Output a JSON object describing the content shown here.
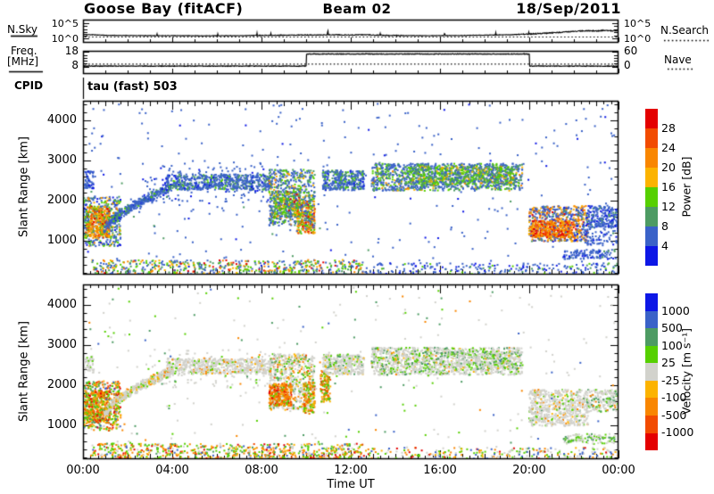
{
  "header": {
    "station": "Goose Bay (fitACF)",
    "beam": "Beam 02",
    "date": "18/Sep/2011"
  },
  "strips": {
    "nsky": {
      "label": "N.Sky",
      "right_label": "N.Search",
      "tick_top": "10^5",
      "tick_bottom": "10^0"
    },
    "freq": {
      "label_line1": "Freq.",
      "label_line2": "[MHz]",
      "tick_top": "18",
      "tick_bottom": "8",
      "right_tick_top": "60",
      "right_tick_bottom": "0",
      "right_label": "Nave"
    }
  },
  "cpid": {
    "label": "CPID",
    "value": "tau (fast) 503"
  },
  "axes": {
    "xlabel": "Time UT",
    "xticks": [
      {
        "t": 0,
        "label": "00:00"
      },
      {
        "t": 4,
        "label": "04:00"
      },
      {
        "t": 8,
        "label": "08:00"
      },
      {
        "t": 12,
        "label": "12:00"
      },
      {
        "t": 16,
        "label": "16:00"
      },
      {
        "t": 20,
        "label": "20:00"
      },
      {
        "t": 24,
        "label": "00:00"
      }
    ],
    "yticks": [
      {
        "value": 1000,
        "label": "1000"
      },
      {
        "value": 2000,
        "label": "2000"
      },
      {
        "value": 3000,
        "label": "3000"
      },
      {
        "value": 4000,
        "label": "4000"
      }
    ]
  },
  "palette": {
    "r": "#e40000",
    "R": "#f24b00",
    "O": "#f98600",
    "Y": "#fcb300",
    "g": "#56d000",
    "G": "#4d9b63",
    "b": "#3a62c8",
    "B": "#0d17e6",
    "X": "#d2d2cc"
  },
  "chart_data": [
    {
      "type": "line",
      "title": "N.Sky / N.Search",
      "x_range": [
        0,
        24
      ],
      "y_scale": "log10, 10^0 to 10^5",
      "series": [
        {
          "name": "N.Sky",
          "style": "solid",
          "points": [
            [
              0,
              1.3
            ],
            [
              0.5,
              1.15
            ],
            [
              1,
              1.0
            ],
            [
              2,
              0.95
            ],
            [
              3,
              0.9
            ],
            [
              5,
              0.85
            ],
            [
              7,
              0.88
            ],
            [
              8,
              0.98
            ],
            [
              9,
              1.05
            ],
            [
              10,
              1.1
            ],
            [
              10.5,
              1.1
            ],
            [
              11,
              1.2
            ],
            [
              11.5,
              1.15
            ],
            [
              12,
              1.1
            ],
            [
              12.5,
              1.2
            ],
            [
              13,
              1.1
            ],
            [
              13.5,
              1.0
            ],
            [
              14,
              0.95
            ],
            [
              15,
              0.9
            ],
            [
              16,
              0.9
            ],
            [
              17,
              0.95
            ],
            [
              18,
              1.05
            ],
            [
              19,
              1.15
            ],
            [
              20,
              1.4
            ],
            [
              21,
              1.8
            ],
            [
              21.5,
              2.05
            ],
            [
              22,
              2.3
            ],
            [
              22.5,
              2.5
            ],
            [
              23,
              2.45
            ],
            [
              23.4,
              2.65
            ],
            [
              23.7,
              2.5
            ],
            [
              24,
              2.6
            ]
          ]
        },
        {
          "name": "N.Search",
          "style": "dotted",
          "points": [
            [
              0,
              0.45
            ],
            [
              24,
              0.45
            ]
          ]
        }
      ]
    },
    {
      "type": "line",
      "title": "Freq [MHz] / Nave",
      "x_range": [
        0,
        24
      ],
      "y_range": [
        8,
        18
      ],
      "right_axis": {
        "label": "Nave",
        "range": [
          0,
          60
        ]
      },
      "series": [
        {
          "name": "Freq",
          "style": "solid",
          "points": [
            [
              0,
              8.35
            ],
            [
              10,
              8.35
            ],
            [
              10,
              16.7
            ],
            [
              20,
              16.7
            ],
            [
              20,
              8.35
            ],
            [
              24,
              8.35
            ]
          ]
        },
        {
          "name": "Nave",
          "style": "dotted",
          "points": [
            [
              0,
              8
            ],
            [
              24,
              8
            ]
          ]
        }
      ]
    },
    {
      "type": "scatter",
      "title": "Power",
      "ylabel": "Slant Range [km]",
      "x_range": [
        0,
        24
      ],
      "y_range": [
        150,
        4500
      ],
      "colorbar": {
        "label": "Power [dB]",
        "labels": [
          "28",
          "24",
          "20",
          "16",
          "12",
          "8",
          "4"
        ],
        "colors": [
          "#e40000",
          "#f24b00",
          "#f98600",
          "#fcb300",
          "#56d000",
          "#4d9b63",
          "#3a62c8",
          "#0d17e6"
        ]
      },
      "seed": 1234,
      "regions": [
        {
          "t0": 0.0,
          "t1": 1.65,
          "r0": 880,
          "r1": 2120,
          "n": 420,
          "c": {
            "b": 40,
            "B": 8,
            "g": 20,
            "G": 16,
            "Y": 8,
            "O": 8
          }
        },
        {
          "t0": 0.08,
          "t1": 1.15,
          "r0": 1080,
          "r1": 1880,
          "n": 330,
          "c": {
            "O": 34,
            "Y": 22,
            "g": 20,
            "R": 12,
            "r": 5,
            "G": 7
          }
        },
        {
          "t0": 0.9,
          "t1": 3.9,
          "r0": 1250,
          "r1": 2350,
          "n": 420,
          "curve": true,
          "spread": 280,
          "c": {
            "b": 70,
            "B": 8,
            "G": 14,
            "g": 8
          }
        },
        {
          "t0": 3.7,
          "t1": 8.4,
          "r0": 2290,
          "r1": 2680,
          "n": 620,
          "c": {
            "b": 72,
            "B": 6,
            "G": 14,
            "g": 8
          }
        },
        {
          "t0": 2.8,
          "t1": 8.4,
          "r0": 1950,
          "r1": 2900,
          "n": 140,
          "c": {
            "b": 88,
            "B": 12
          }
        },
        {
          "t0": 8.3,
          "t1": 10.35,
          "r0": 1400,
          "r1": 2800,
          "n": 650,
          "c": {
            "b": 50,
            "G": 20,
            "g": 18,
            "Y": 6,
            "O": 6
          }
        },
        {
          "t0": 8.5,
          "t1": 9.7,
          "r0": 1600,
          "r1": 2250,
          "n": 230,
          "c": {
            "g": 32,
            "G": 26,
            "b": 18,
            "Y": 12,
            "O": 8,
            "r": 4
          }
        },
        {
          "t0": 9.55,
          "t1": 10.35,
          "r0": 1200,
          "r1": 2000,
          "n": 200,
          "c": {
            "O": 26,
            "g": 22,
            "Y": 14,
            "b": 18,
            "R": 12,
            "r": 8
          }
        },
        {
          "t0": 10.7,
          "t1": 12.55,
          "r0": 2280,
          "r1": 2780,
          "n": 360,
          "c": {
            "b": 66,
            "G": 16,
            "g": 12,
            "B": 6
          }
        },
        {
          "t0": 12.9,
          "t1": 19.65,
          "r0": 2270,
          "r1": 2950,
          "n": 1250,
          "c": {
            "b": 52,
            "G": 22,
            "g": 16,
            "Y": 5,
            "O": 5
          }
        },
        {
          "t0": 14.4,
          "t1": 19.2,
          "r0": 2430,
          "r1": 2870,
          "n": 420,
          "c": {
            "G": 36,
            "g": 36,
            "Y": 12,
            "b": 16
          }
        },
        {
          "t0": 19.95,
          "t1": 22.6,
          "r0": 1000,
          "r1": 1900,
          "n": 650,
          "c": {
            "b": 42,
            "B": 8,
            "O": 16,
            "Y": 14,
            "R": 9,
            "r": 4,
            "G": 7
          }
        },
        {
          "t0": 20.0,
          "t1": 21.95,
          "r0": 1100,
          "r1": 1520,
          "n": 330,
          "c": {
            "O": 40,
            "R": 22,
            "Y": 22,
            "r": 16
          }
        },
        {
          "t0": 22.55,
          "t1": 23.95,
          "r0": 1350,
          "r1": 1900,
          "n": 230,
          "c": {
            "b": 80,
            "B": 14,
            "G": 6
          }
        },
        {
          "t0": 22.4,
          "t1": 24,
          "r0": 900,
          "r1": 1400,
          "n": 90,
          "c": {
            "b": 85,
            "B": 15
          }
        },
        {
          "t0": 0,
          "t1": 24,
          "r0": 350,
          "r1": 4450,
          "n": 330,
          "c": {
            "b": 84,
            "B": 10,
            "G": 6
          }
        },
        {
          "t0": 0.3,
          "t1": 12.5,
          "r0": 165,
          "r1": 540,
          "n": 560,
          "c": {
            "b": 30,
            "G": 16,
            "g": 22,
            "O": 13,
            "Y": 12,
            "r": 7
          }
        },
        {
          "t0": 12.5,
          "t1": 24,
          "r0": 165,
          "r1": 460,
          "n": 240,
          "c": {
            "b": 64,
            "B": 16,
            "G": 10,
            "g": 10
          }
        },
        {
          "t0": 21.5,
          "t1": 23.8,
          "r0": 560,
          "r1": 800,
          "n": 120,
          "c": {
            "b": 78,
            "B": 16,
            "G": 6
          }
        },
        {
          "t0": 0,
          "t1": 0.45,
          "r0": 2330,
          "r1": 2760,
          "n": 60,
          "c": {
            "b": 85,
            "B": 15
          }
        }
      ]
    },
    {
      "type": "scatter",
      "title": "Velocity",
      "ylabel": "Slant Range [km]",
      "xlabel": "Time UT",
      "x_range": [
        0,
        24
      ],
      "y_range": [
        150,
        4500
      ],
      "colorbar": {
        "label": "Velocity [m s⁻¹]",
        "labels": [
          "1000",
          "500",
          "100",
          "25",
          "-25",
          "-100",
          "-500",
          "-1000"
        ],
        "colors": [
          "#0d17e6",
          "#3a62c8",
          "#4d9b63",
          "#56d000",
          "#d2d2cc",
          "#fcb300",
          "#f98600",
          "#f24b00",
          "#e40000"
        ]
      },
      "seed": 5678,
      "regions": [
        {
          "t0": 0.0,
          "t1": 1.65,
          "r0": 880,
          "r1": 2120,
          "n": 420,
          "c": {
            "g": 26,
            "O": 22,
            "G": 12,
            "Y": 12,
            "R": 9,
            "r": 6,
            "X": 9,
            "b": 4
          }
        },
        {
          "t0": 0.08,
          "t1": 1.15,
          "r0": 1080,
          "r1": 1880,
          "n": 330,
          "c": {
            "O": 34,
            "g": 22,
            "Y": 14,
            "R": 14,
            "r": 8,
            "G": 8
          }
        },
        {
          "t0": 0.9,
          "t1": 3.9,
          "r0": 1250,
          "r1": 2350,
          "n": 420,
          "curve": true,
          "spread": 280,
          "c": {
            "X": 74,
            "g": 10,
            "O": 8,
            "Y": 8
          }
        },
        {
          "t0": 3.7,
          "t1": 8.4,
          "r0": 2290,
          "r1": 2680,
          "n": 620,
          "c": {
            "X": 86,
            "g": 6,
            "Y": 4,
            "O": 4
          }
        },
        {
          "t0": 2.8,
          "t1": 8.4,
          "r0": 1950,
          "r1": 2900,
          "n": 130,
          "c": {
            "X": 78,
            "g": 12,
            "O": 10
          }
        },
        {
          "t0": 8.3,
          "t1": 10.35,
          "r0": 1400,
          "r1": 2800,
          "n": 650,
          "c": {
            "X": 52,
            "g": 16,
            "O": 12,
            "G": 8,
            "Y": 8,
            "R": 4
          }
        },
        {
          "t0": 8.3,
          "t1": 9.3,
          "r0": 1500,
          "r1": 2050,
          "n": 260,
          "c": {
            "O": 46,
            "R": 22,
            "Y": 14,
            "g": 12,
            "r": 6
          }
        },
        {
          "t0": 9.85,
          "t1": 10.35,
          "r0": 1300,
          "r1": 2100,
          "n": 140,
          "c": {
            "O": 30,
            "R": 18,
            "g": 22,
            "X": 14,
            "Y": 16
          }
        },
        {
          "t0": 10.6,
          "t1": 11.05,
          "r0": 1600,
          "r1": 2350,
          "n": 120,
          "c": {
            "O": 28,
            "R": 20,
            "g": 26,
            "G": 12,
            "Y": 14
          }
        },
        {
          "t0": 10.7,
          "t1": 12.55,
          "r0": 2280,
          "r1": 2780,
          "n": 360,
          "c": {
            "X": 76,
            "g": 10,
            "G": 8,
            "Y": 6
          }
        },
        {
          "t0": 12.9,
          "t1": 19.65,
          "r0": 2270,
          "r1": 2950,
          "n": 1250,
          "c": {
            "X": 70,
            "g": 14,
            "G": 10,
            "Y": 3,
            "O": 3
          }
        },
        {
          "t0": 14.4,
          "t1": 19.2,
          "r0": 2430,
          "r1": 2870,
          "n": 300,
          "c": {
            "X": 56,
            "g": 22,
            "G": 17,
            "Y": 5
          }
        },
        {
          "t0": 19.95,
          "t1": 22.6,
          "r0": 1000,
          "r1": 1900,
          "n": 650,
          "c": {
            "X": 82,
            "g": 7,
            "Y": 4,
            "O": 4,
            "G": 3
          }
        },
        {
          "t0": 22.55,
          "t1": 23.95,
          "r0": 1350,
          "r1": 1900,
          "n": 210,
          "c": {
            "X": 72,
            "g": 14,
            "G": 10,
            "O": 4
          }
        },
        {
          "t0": 0,
          "t1": 24,
          "r0": 350,
          "r1": 4450,
          "n": 280,
          "c": {
            "X": 52,
            "g": 18,
            "b": 10,
            "O": 12,
            "G": 8
          }
        },
        {
          "t0": 0.3,
          "t1": 12.5,
          "r0": 165,
          "r1": 560,
          "n": 680,
          "c": {
            "g": 27,
            "O": 19,
            "Y": 13,
            "X": 12,
            "G": 9,
            "r": 7,
            "b": 7,
            "R": 6
          }
        },
        {
          "t0": 12.5,
          "t1": 24,
          "r0": 165,
          "r1": 460,
          "n": 260,
          "c": {
            "g": 24,
            "X": 28,
            "O": 18,
            "b": 14,
            "Y": 10,
            "r": 6
          }
        },
        {
          "t0": 21.5,
          "t1": 23.8,
          "r0": 560,
          "r1": 800,
          "n": 120,
          "c": {
            "X": 55,
            "g": 30,
            "G": 15
          }
        },
        {
          "t0": 0,
          "t1": 0.45,
          "r0": 2330,
          "r1": 2760,
          "n": 50,
          "c": {
            "X": 84,
            "g": 16
          }
        }
      ]
    }
  ]
}
